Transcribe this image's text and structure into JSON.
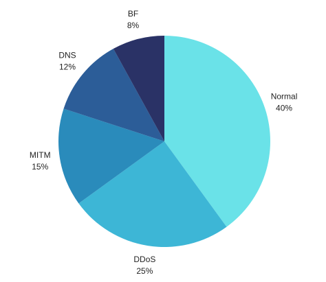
{
  "chart_data": {
    "type": "pie",
    "categories": [
      "Normal",
      "DDoS",
      "MITM",
      "DNS",
      "BF"
    ],
    "values": [
      40,
      25,
      15,
      12,
      8
    ],
    "value_labels": [
      "40%",
      "25%",
      "15%",
      "12%",
      "8%"
    ],
    "colors": [
      "#6ae2e8",
      "#3db6d6",
      "#2a8bbb",
      "#2c5d98",
      "#2a3266"
    ]
  }
}
